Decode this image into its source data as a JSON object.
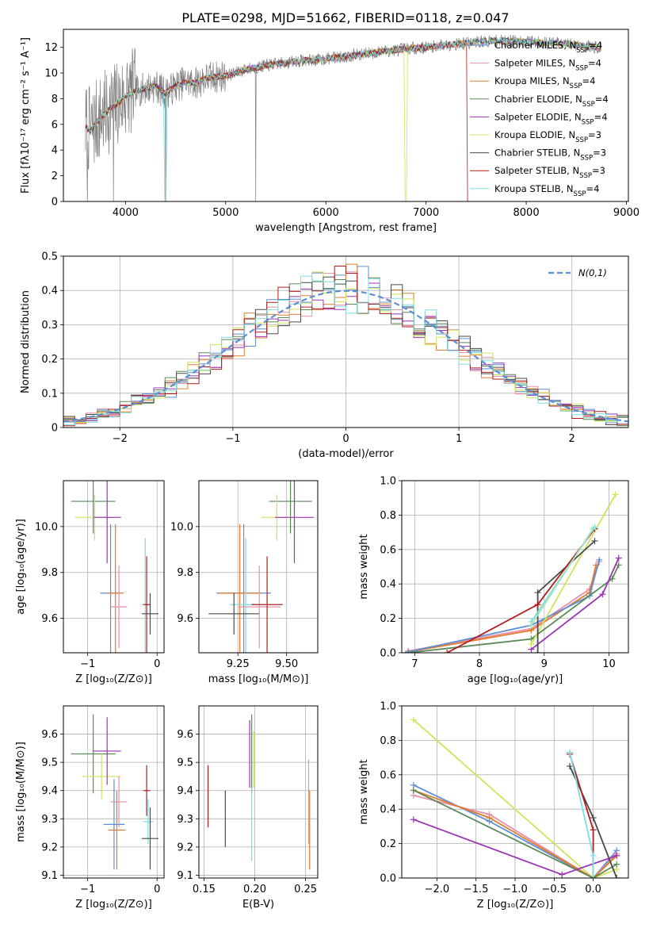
{
  "figure": {
    "title": "PLATE=0298, MJD=51662, FIBERID=0118, z=0.047"
  },
  "colors": {
    "data_spectrum": "#808080",
    "normal_curve": "#5b8fd6"
  },
  "chart_data": [
    {
      "id": "spectrum",
      "type": "line",
      "xlabel": "wavelength [Angstrom, rest frame]",
      "ylabel": "Flux [fλ10⁻¹⁷ erg cm⁻² s⁻¹ A⁻¹]",
      "xlim": [
        3380,
        9020
      ],
      "ylim": [
        0,
        13.4
      ],
      "xticks": [
        4000,
        5000,
        6000,
        7000,
        8000,
        9000
      ],
      "yticks": [
        0,
        2,
        4,
        6,
        8,
        10,
        12
      ],
      "legend_position": "right",
      "grid": false,
      "continuum": {
        "x": [
          3600,
          3650,
          3700,
          3750,
          3800,
          3850,
          3900,
          3950,
          4000,
          4100,
          4200,
          4300,
          4400,
          4500,
          4600,
          4700,
          4800,
          4900,
          5000,
          5100,
          5200,
          5300,
          5400,
          5500,
          5600,
          5700,
          5800,
          5900,
          6000,
          6200,
          6400,
          6600,
          6800,
          7000,
          7200,
          7400,
          7500,
          7700,
          7900,
          8100,
          8300,
          8500,
          8700
        ],
        "y": [
          5.8,
          5.5,
          6.0,
          6.5,
          6.8,
          7.3,
          7.5,
          7.8,
          8.2,
          8.6,
          8.8,
          9.0,
          8.4,
          9.0,
          9.3,
          9.2,
          9.6,
          9.7,
          9.8,
          10.0,
          10.3,
          10.4,
          10.6,
          10.7,
          10.8,
          10.9,
          11.0,
          11.0,
          11.1,
          11.3,
          11.5,
          11.7,
          11.9,
          12.0,
          12.2,
          12.3,
          12.4,
          12.5,
          12.5,
          12.4,
          12.3,
          12.2,
          12.0
        ]
      },
      "series": [
        {
          "name": "Chabrier MILES, N$_{SSP}$=4",
          "color": "#5b8fd6"
        },
        {
          "name": "Salpeter MILES, N$_{SSP}$=4",
          "color": "#e98fa8"
        },
        {
          "name": "Kroupa MILES, N$_{SSP}$=4",
          "color": "#e07b2c"
        },
        {
          "name": "Chabrier ELODIE, N$_{SSP}$=4",
          "color": "#5b8a58"
        },
        {
          "name": "Salpeter ELODIE, N$_{SSP}$=4",
          "color": "#9b33b5"
        },
        {
          "name": "Kroupa ELODIE, N$_{SSP}$=3",
          "color": "#cfe35a"
        },
        {
          "name": "Chabrier STELIB, N$_{SSP}$=3",
          "color": "#4a4a4a"
        },
        {
          "name": "Salpeter STELIB, N$_{SSP}$=3",
          "color": "#b01d1d"
        },
        {
          "name": "Kroupa STELIB, N$_{SSP}$=4",
          "color": "#7fdde0"
        }
      ]
    },
    {
      "id": "residuals",
      "type": "histogram",
      "xlabel": "(data-model)/error",
      "ylabel": "Normed distribution",
      "xlim": [
        -2.5,
        2.5
      ],
      "ylim": [
        0,
        0.5
      ],
      "xticks": [
        -2,
        -1,
        0,
        1,
        2
      ],
      "yticks": [
        0.0,
        0.1,
        0.2,
        0.3,
        0.4,
        0.5
      ],
      "grid": true,
      "legend_position": "top-right",
      "reference_label": "$\\mathcal{N}(0, 1)$",
      "bin_width": 0.1,
      "bin_start": -2.5
    },
    {
      "id": "age-vs-Z",
      "type": "scatter",
      "xlabel": "Z [log₁₀(Z/Z⊙)]",
      "ylabel": "age  [log₁₀(age/yr)]",
      "xlim": [
        -1.35,
        0.1
      ],
      "ylim": [
        9.45,
        10.2
      ],
      "xticks": [
        -1,
        0
      ],
      "yticks": [
        9.6,
        9.8,
        10.0
      ],
      "grid": true,
      "points": [
        {
          "x": -0.92,
          "y": 10.11,
          "xerr": 0.32,
          "yerr": 0.14,
          "color": "#5b8a58"
        },
        {
          "x": -0.9,
          "y": 10.04,
          "xerr": 0.28,
          "yerr": 0.1,
          "color": "#cfe35a"
        },
        {
          "x": -0.72,
          "y": 10.04,
          "xerr": 0.2,
          "yerr": 0.2,
          "color": "#9b33b5"
        },
        {
          "x": -0.67,
          "y": 9.71,
          "xerr": 0.15,
          "yerr": 0.3,
          "color": "#5b8fd6"
        },
        {
          "x": -0.6,
          "y": 9.71,
          "xerr": 0.12,
          "yerr": 0.3,
          "color": "#e07b2c"
        },
        {
          "x": -0.55,
          "y": 9.65,
          "xerr": 0.12,
          "yerr": 0.18,
          "color": "#e98fa8"
        },
        {
          "x": -0.17,
          "y": 9.66,
          "xerr": 0.05,
          "yerr": 0.29,
          "color": "#7fdde0"
        },
        {
          "x": -0.15,
          "y": 9.66,
          "xerr": 0.05,
          "yerr": 0.21,
          "color": "#b01d1d"
        },
        {
          "x": -0.1,
          "y": 9.62,
          "xerr": 0.12,
          "yerr": 0.09,
          "color": "#4a4a4a"
        }
      ]
    },
    {
      "id": "age-vs-mass",
      "type": "scatter",
      "xlabel": "mass [log₁₀(M/M⊙)]",
      "ylabel": "",
      "xlim": [
        9.05,
        9.66
      ],
      "ylim": [
        9.45,
        10.2
      ],
      "xticks": [
        9.25,
        9.5
      ],
      "yticks": [
        9.6,
        9.8,
        10.0
      ],
      "grid": true,
      "points": [
        {
          "x": 9.52,
          "y": 10.11,
          "xerr": 0.11,
          "yerr": 0.14,
          "color": "#5b8a58"
        },
        {
          "x": 9.45,
          "y": 10.04,
          "xerr": 0.08,
          "yerr": 0.1,
          "color": "#cfe35a"
        },
        {
          "x": 9.54,
          "y": 10.04,
          "xerr": 0.1,
          "yerr": 0.2,
          "color": "#9b33b5"
        },
        {
          "x": 9.28,
          "y": 9.71,
          "xerr": 0.14,
          "yerr": 0.3,
          "color": "#5b8fd6"
        },
        {
          "x": 9.26,
          "y": 9.71,
          "xerr": 0.11,
          "yerr": 0.3,
          "color": "#e07b2c"
        },
        {
          "x": 9.36,
          "y": 9.65,
          "xerr": 0.11,
          "yerr": 0.18,
          "color": "#e98fa8"
        },
        {
          "x": 9.29,
          "y": 9.66,
          "xerr": 0.08,
          "yerr": 0.29,
          "color": "#7fdde0"
        },
        {
          "x": 9.4,
          "y": 9.66,
          "xerr": 0.08,
          "yerr": 0.21,
          "color": "#b01d1d"
        },
        {
          "x": 9.23,
          "y": 9.62,
          "xerr": 0.13,
          "yerr": 0.09,
          "color": "#4a4a4a"
        }
      ]
    },
    {
      "id": "mass-weight-vs-age",
      "type": "line",
      "xlabel": "age  [log₁₀(age/yr)]",
      "ylabel": "mass weight",
      "xlim": [
        6.8,
        10.3
      ],
      "ylim": [
        0,
        1.0
      ],
      "xticks": [
        7,
        8,
        9,
        10
      ],
      "yticks": [
        0.0,
        0.2,
        0.4,
        0.6,
        0.8,
        1.0
      ],
      "grid": true,
      "series": [
        {
          "color": "#e98fa8",
          "x": [
            6.9,
            8.8,
            9.7,
            9.85
          ],
          "y": [
            0.01,
            0.14,
            0.37,
            0.53
          ]
        },
        {
          "color": "#e07b2c",
          "x": [
            6.9,
            8.8,
            9.7,
            9.8
          ],
          "y": [
            0.005,
            0.13,
            0.35,
            0.51
          ]
        },
        {
          "color": "#5b8fd6",
          "x": [
            6.9,
            8.8,
            9.7,
            9.85
          ],
          "y": [
            0.005,
            0.16,
            0.33,
            0.54
          ]
        },
        {
          "color": "#5b8a58",
          "x": [
            6.9,
            8.8,
            10.05,
            10.15
          ],
          "y": [
            0.0,
            0.08,
            0.43,
            0.51
          ]
        },
        {
          "color": "#9b33b5",
          "x": [
            8.8,
            9.9,
            10.15
          ],
          "y": [
            0.02,
            0.34,
            0.55
          ]
        },
        {
          "color": "#cfe35a",
          "x": [
            8.8,
            10.1
          ],
          "y": [
            0.05,
            0.92
          ]
        },
        {
          "color": "#4a4a4a",
          "x": [
            8.9,
            8.9,
            9.78
          ],
          "y": [
            0.0,
            0.35,
            0.65
          ]
        },
        {
          "color": "#b01d1d",
          "x": [
            7.5,
            8.9,
            9.78
          ],
          "y": [
            0.0,
            0.28,
            0.72
          ]
        },
        {
          "color": "#7fdde0",
          "x": [
            8.8,
            9.78
          ],
          "y": [
            0.18,
            0.73
          ]
        },
        {
          "color": "#a6e3b8",
          "x": [
            8.8,
            9.75
          ],
          "y": [
            0.16,
            0.72
          ]
        }
      ]
    },
    {
      "id": "mass-vs-Z",
      "type": "scatter",
      "xlabel": "Z [log₁₀(Z/Z⊙)]",
      "ylabel": "mass [log₁₀(M/M⊙)]",
      "xlim": [
        -1.35,
        0.1
      ],
      "ylim": [
        9.09,
        9.7
      ],
      "xticks": [
        -1,
        0
      ],
      "yticks": [
        9.1,
        9.2,
        9.3,
        9.4,
        9.5,
        9.6
      ],
      "grid": true,
      "points": [
        {
          "x": -0.92,
          "y": 9.53,
          "xerr": 0.32,
          "yerr": 0.14,
          "color": "#5b8a58"
        },
        {
          "x": -0.8,
          "y": 9.45,
          "xerr": 0.28,
          "yerr": 0.08,
          "color": "#cfe35a"
        },
        {
          "x": -0.72,
          "y": 9.54,
          "xerr": 0.2,
          "yerr": 0.12,
          "color": "#9b33b5"
        },
        {
          "x": -0.55,
          "y": 9.36,
          "xerr": 0.12,
          "yerr": 0.09,
          "color": "#e98fa8"
        },
        {
          "x": -0.62,
          "y": 9.28,
          "xerr": 0.15,
          "yerr": 0.16,
          "color": "#5b8fd6"
        },
        {
          "x": -0.58,
          "y": 9.26,
          "xerr": 0.12,
          "yerr": 0.14,
          "color": "#e07b2c"
        },
        {
          "x": -0.15,
          "y": 9.4,
          "xerr": 0.05,
          "yerr": 0.09,
          "color": "#b01d1d"
        },
        {
          "x": -0.13,
          "y": 9.29,
          "xerr": 0.08,
          "yerr": 0.08,
          "color": "#7fdde0"
        },
        {
          "x": -0.1,
          "y": 9.23,
          "xerr": 0.12,
          "yerr": 0.11,
          "color": "#4a4a4a"
        }
      ]
    },
    {
      "id": "mass-vs-EBV",
      "type": "scatter",
      "xlabel": "E(B-V)",
      "ylabel": "",
      "xlim": [
        0.145,
        0.262
      ],
      "ylim": [
        9.09,
        9.7
      ],
      "xticks": [
        0.15,
        0.2,
        0.25
      ],
      "yticks": [
        9.1,
        9.2,
        9.3,
        9.4,
        9.5,
        9.6
      ],
      "grid": true,
      "points": [
        {
          "x": 0.154,
          "y": 9.38,
          "xerr": 0.0,
          "yerr": 0.11,
          "color": "#b01d1d"
        },
        {
          "x": 0.171,
          "y": 9.3,
          "xerr": 0.0,
          "yerr": 0.1,
          "color": "#4a4a4a"
        },
        {
          "x": 0.195,
          "y": 9.53,
          "xerr": 0.0,
          "yerr": 0.12,
          "color": "#9b33b5"
        },
        {
          "x": 0.197,
          "y": 9.53,
          "xerr": 0.0,
          "yerr": 0.14,
          "color": "#5b8a58"
        },
        {
          "x": 0.199,
          "y": 9.51,
          "xerr": 0.0,
          "yerr": 0.1,
          "color": "#cfe35a"
        },
        {
          "x": 0.197,
          "y": 9.28,
          "xerr": 0.0,
          "yerr": 0.13,
          "color": "#7fdde0"
        },
        {
          "x": 0.253,
          "y": 9.36,
          "xerr": 0.0,
          "yerr": 0.15,
          "color": "#e98fa8"
        },
        {
          "x": 0.254,
          "y": 9.26,
          "xerr": 0.0,
          "yerr": 0.14,
          "color": "#e07b2c"
        }
      ]
    },
    {
      "id": "mass-weight-vs-Z",
      "type": "line",
      "xlabel": "Z [log₁₀(Z/Z⊙)]",
      "ylabel": "mass weight",
      "xlim": [
        -2.45,
        0.45
      ],
      "ylim": [
        0,
        1.0
      ],
      "xticks": [
        -2.0,
        -1.5,
        -1.0,
        -0.5,
        0.0
      ],
      "yticks": [
        0.0,
        0.2,
        0.4,
        0.6,
        0.8,
        1.0
      ],
      "grid": true,
      "series": [
        {
          "color": "#cfe35a",
          "x": [
            -2.3,
            0.0,
            0.3
          ],
          "y": [
            0.92,
            0.0,
            0.05
          ]
        },
        {
          "color": "#5b8fd6",
          "x": [
            -2.3,
            -1.33,
            0.0,
            0.3
          ],
          "y": [
            0.54,
            0.33,
            0.0,
            0.16
          ]
        },
        {
          "color": "#e98fa8",
          "x": [
            -2.3,
            -1.33,
            0.0,
            0.3
          ],
          "y": [
            0.48,
            0.37,
            0.0,
            0.14
          ]
        },
        {
          "color": "#e07b2c",
          "x": [
            -2.3,
            -1.33,
            0.0,
            0.3
          ],
          "y": [
            0.51,
            0.35,
            0.0,
            0.13
          ]
        },
        {
          "color": "#5b8a58",
          "x": [
            -2.3,
            0.0,
            0.3
          ],
          "y": [
            0.51,
            0.0,
            0.08
          ]
        },
        {
          "color": "#9b33b5",
          "x": [
            -2.3,
            -0.4,
            0.3
          ],
          "y": [
            0.34,
            0.02,
            0.13
          ]
        },
        {
          "color": "#4a4a4a",
          "x": [
            -0.3,
            0.0,
            0.3
          ],
          "y": [
            0.65,
            0.35,
            0.0
          ]
        },
        {
          "color": "#b01d1d",
          "x": [
            -0.3,
            0.0,
            0.0
          ],
          "y": [
            0.72,
            0.28,
            0.0
          ]
        },
        {
          "color": "#7fdde0",
          "x": [
            -0.3,
            0.0,
            0.0
          ],
          "y": [
            0.73,
            0.13,
            0.0
          ]
        }
      ]
    }
  ]
}
